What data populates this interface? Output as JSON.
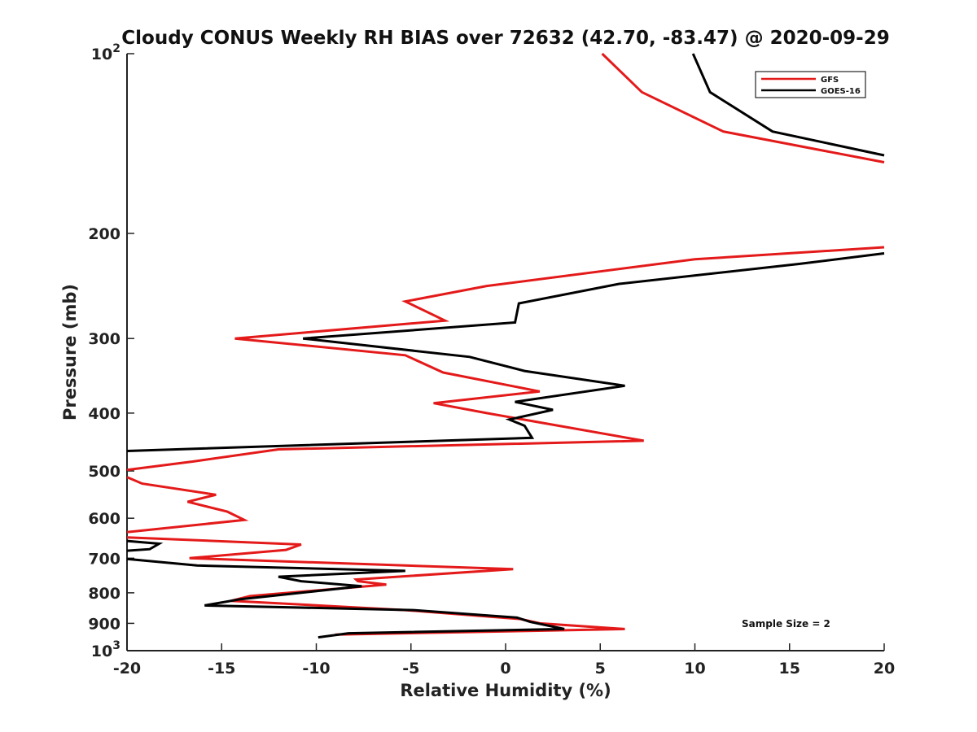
{
  "chart_data": {
    "type": "line",
    "title": "Cloudy CONUS Weekly RH BIAS over 72632 (42.70, -83.47) @ 2020-09-29",
    "xlabel": "Relative Humidity (%)",
    "ylabel": "Pressure (mb)",
    "xlim": [
      -20,
      20
    ],
    "ylim": [
      100,
      1000
    ],
    "y_scale": "log",
    "y_reversed": true,
    "grid": false,
    "legend_position": "top-right",
    "x_ticks": [
      "-20",
      "-15",
      "-10",
      "-5",
      "0",
      "5",
      "10",
      "15",
      "20"
    ],
    "y_ticks": [
      {
        "value": 100,
        "base": "10",
        "exp": "2"
      },
      {
        "value": 200,
        "label": "200"
      },
      {
        "value": 300,
        "label": "300"
      },
      {
        "value": 400,
        "label": "400"
      },
      {
        "value": 500,
        "label": "500"
      },
      {
        "value": 600,
        "label": "600"
      },
      {
        "value": 700,
        "label": "700"
      },
      {
        "value": 800,
        "label": "800"
      },
      {
        "value": 900,
        "label": "900"
      },
      {
        "value": 1000,
        "base": "10",
        "exp": "3"
      }
    ],
    "annotation": "Sample Size = 2",
    "series": [
      {
        "name": "GFS",
        "color": "#e41a1a",
        "points": [
          [
            5.1,
            100
          ],
          [
            7.2,
            116
          ],
          [
            11.5,
            135
          ],
          [
            20,
            152
          ],
          null,
          [
            20,
            211
          ],
          [
            10.0,
            221
          ],
          [
            -1.0,
            245
          ],
          [
            -5.3,
            260
          ],
          [
            -3.2,
            280
          ],
          [
            -14.3,
            300
          ],
          [
            -5.3,
            320
          ],
          [
            -3.3,
            342
          ],
          [
            1.8,
            368
          ],
          [
            -3.8,
            385
          ],
          [
            -1.0,
            400
          ],
          [
            7.3,
            445
          ],
          [
            -12.0,
            460
          ],
          [
            -16.5,
            482
          ],
          [
            -20,
            498
          ],
          null,
          [
            -20,
            512
          ],
          [
            -19.2,
            525
          ],
          [
            -15.3,
            548
          ],
          [
            -16.8,
            563
          ],
          [
            -14.7,
            585
          ],
          [
            -13.8,
            604
          ],
          [
            -20,
            633
          ],
          null,
          [
            -20,
            646
          ],
          [
            -10.8,
            664
          ],
          [
            -11.6,
            678
          ],
          [
            -16.7,
            700
          ],
          [
            0.4,
            730
          ],
          [
            -7.9,
            760
          ],
          [
            -7.8,
            765
          ],
          [
            -6.3,
            775
          ],
          [
            -13.5,
            810
          ],
          [
            -14.5,
            825
          ],
          [
            -5.3,
            855
          ],
          [
            0.8,
            885
          ],
          [
            1.8,
            900
          ],
          [
            6.3,
            920
          ],
          [
            -9.0,
            940
          ]
        ]
      },
      {
        "name": "GOES-16",
        "color": "#000000",
        "points": [
          [
            9.9,
            100
          ],
          [
            10.8,
            116
          ],
          [
            14.1,
            135
          ],
          [
            20,
            148
          ],
          null,
          [
            20,
            216
          ],
          [
            15.5,
            225
          ],
          [
            6.0,
            243
          ],
          [
            0.7,
            262
          ],
          [
            0.5,
            282
          ],
          [
            -10.7,
            300
          ],
          [
            -1.9,
            322
          ],
          [
            1.0,
            340
          ],
          [
            6.3,
            360
          ],
          [
            0.5,
            383
          ],
          [
            2.5,
            395
          ],
          [
            0.2,
            410
          ],
          [
            1.0,
            420
          ],
          [
            1.4,
            440
          ],
          [
            -20,
            463
          ],
          null,
          [
            -20,
            655
          ],
          [
            -18.3,
            662
          ],
          [
            -18.8,
            676
          ],
          [
            -20,
            680
          ],
          null,
          [
            -20,
            702
          ],
          [
            -16.3,
            720
          ],
          [
            -5.3,
            735
          ],
          [
            -12.0,
            752
          ],
          [
            -10.8,
            765
          ],
          [
            -7.6,
            780
          ],
          [
            -14.0,
            820
          ],
          [
            -15.9,
            840
          ],
          [
            -4.9,
            855
          ],
          [
            0.6,
            880
          ],
          [
            1.3,
            895
          ],
          [
            3.1,
            920
          ],
          [
            -8.3,
            935
          ],
          [
            -9.9,
            950
          ]
        ]
      }
    ]
  }
}
